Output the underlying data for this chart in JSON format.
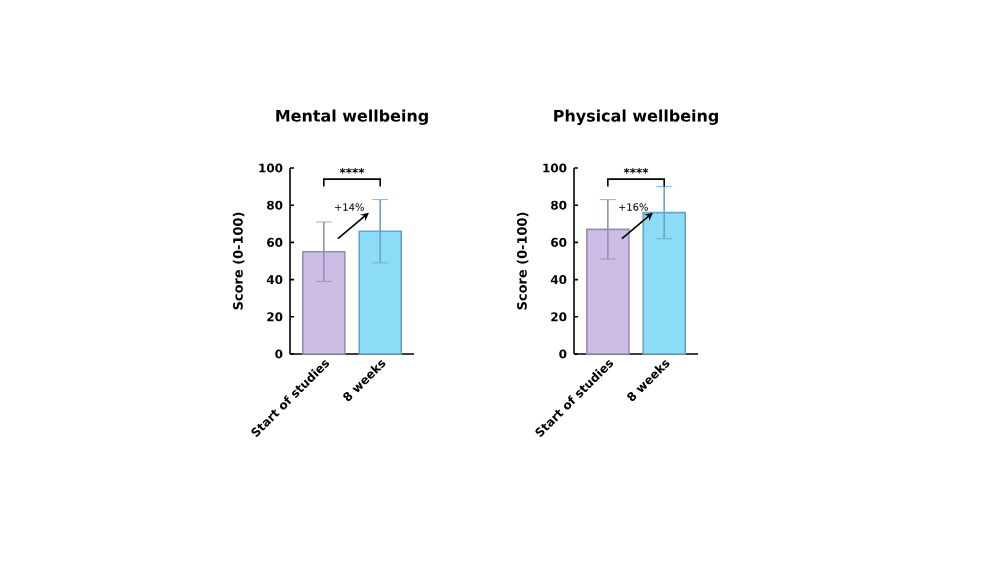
{
  "chart_data": [
    {
      "type": "bar",
      "title": "Mental wellbeing",
      "ylabel": "Score (0-100)",
      "categories": [
        "Start of studies",
        "8 weeks"
      ],
      "values": [
        55,
        66
      ],
      "colors": [
        "#cbbde3",
        "#8ddcf7"
      ],
      "errors": [
        16,
        17
      ],
      "ylim": [
        0,
        100
      ],
      "yticks": [
        0,
        20,
        40,
        60,
        80,
        100
      ],
      "annotations": [
        "****",
        "+14%"
      ]
    },
    {
      "type": "bar",
      "title": "Physical wellbeing",
      "ylabel": "Score (0-100)",
      "categories": [
        "Start of studies",
        "8 weeks"
      ],
      "values": [
        67,
        76
      ],
      "colors": [
        "#cbbde3",
        "#8ddcf7"
      ],
      "errors": [
        16,
        14
      ],
      "ylim": [
        0,
        100
      ],
      "yticks": [
        0,
        20,
        40,
        60,
        80,
        100
      ],
      "annotations": [
        "****",
        "+16%"
      ]
    }
  ]
}
